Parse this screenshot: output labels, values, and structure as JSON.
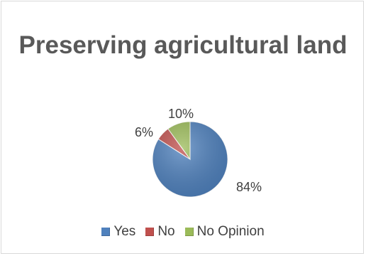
{
  "chart_data": {
    "type": "pie",
    "title": "Preserving agricultural land",
    "categories": [
      "Yes",
      "No",
      "No Opinion"
    ],
    "values": [
      84,
      6,
      10
    ],
    "labels": [
      "84%",
      "6%",
      "10%"
    ],
    "colors": [
      "#4f81bd",
      "#c0504d",
      "#9bbb59"
    ],
    "legend_position": "bottom"
  }
}
